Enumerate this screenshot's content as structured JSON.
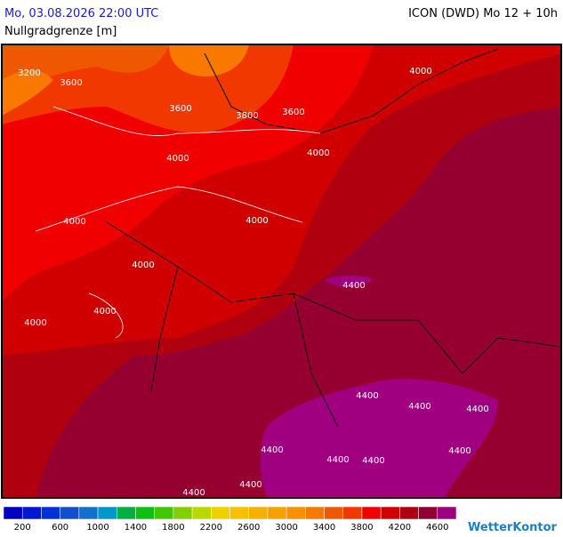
{
  "header": {
    "datetime": "Mo, 03.08.2026 22:00 UTC",
    "parameter": "Nullgradgrenze [m]",
    "model": "ICON (DWD) Mo 12 + 10h"
  },
  "contour_labels": [
    "3200",
    "3600",
    "3600",
    "3800",
    "3600",
    "4000",
    "4000",
    "4000",
    "4000",
    "4000",
    "4000",
    "4400",
    "4000",
    "4000",
    "4400",
    "4400",
    "4400",
    "4400",
    "4400",
    "4400",
    "4400",
    "4400",
    "4400"
  ],
  "legend": {
    "colors": [
      "#0000c0",
      "#0018d0",
      "#0030d8",
      "#1050d0",
      "#1070d0",
      "#0098c8",
      "#00b040",
      "#10c010",
      "#40c800",
      "#80d000",
      "#b8d800",
      "#f0d000",
      "#f8c000",
      "#f8b000",
      "#f8a000",
      "#f89000",
      "#f87800",
      "#f05800",
      "#f03800",
      "#f00000",
      "#d00000",
      "#b00010",
      "#900030",
      "#a00080"
    ],
    "labels": [
      "200",
      "600",
      "1000",
      "1400",
      "1800",
      "2200",
      "2600",
      "3000",
      "3400",
      "3800",
      "4200",
      "4600"
    ]
  },
  "logo": "WetterKontor"
}
